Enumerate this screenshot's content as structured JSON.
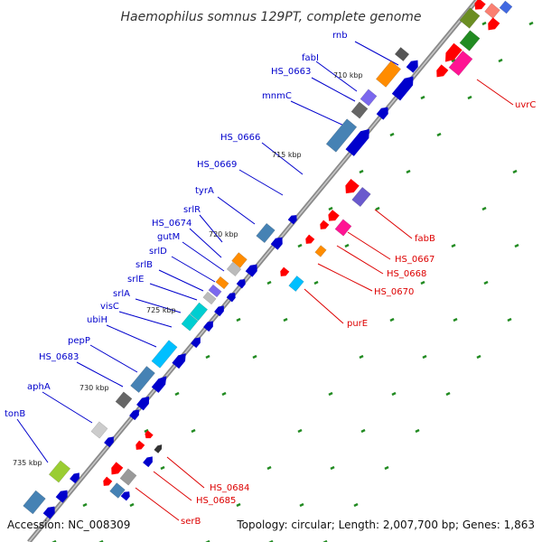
{
  "title": "Haemophilus somnus 129PT, complete genome",
  "accession": "Accession: NC_008309",
  "summary": "Topology: circular; Length: 2,007,700 bp; Genes: 1,863",
  "colors": {
    "backbone": "#8a8a8a",
    "forward_label": "#0000cc",
    "reverse_label": "#dd0000",
    "tick_mark": "#228b22"
  },
  "ticks": [
    "710 kbp",
    "715 kbp",
    "720 kbp",
    "725 kbp",
    "730 kbp",
    "735 kbp"
  ],
  "forward_genes": [
    "rnb",
    "fabI",
    "HS_0663",
    "mnmC",
    "HS_0666",
    "HS_0669",
    "tyrA",
    "srlR",
    "HS_0674",
    "gutM",
    "srlD",
    "srlB",
    "srlE",
    "srlA",
    "visC",
    "ubiH",
    "pepP",
    "HS_0683",
    "aphA",
    "tonB"
  ],
  "reverse_genes": [
    "uvrC",
    "fabB",
    "HS_0667",
    "HS_0668",
    "HS_0670",
    "purE",
    "HS_0684",
    "HS_0685",
    "serB"
  ]
}
